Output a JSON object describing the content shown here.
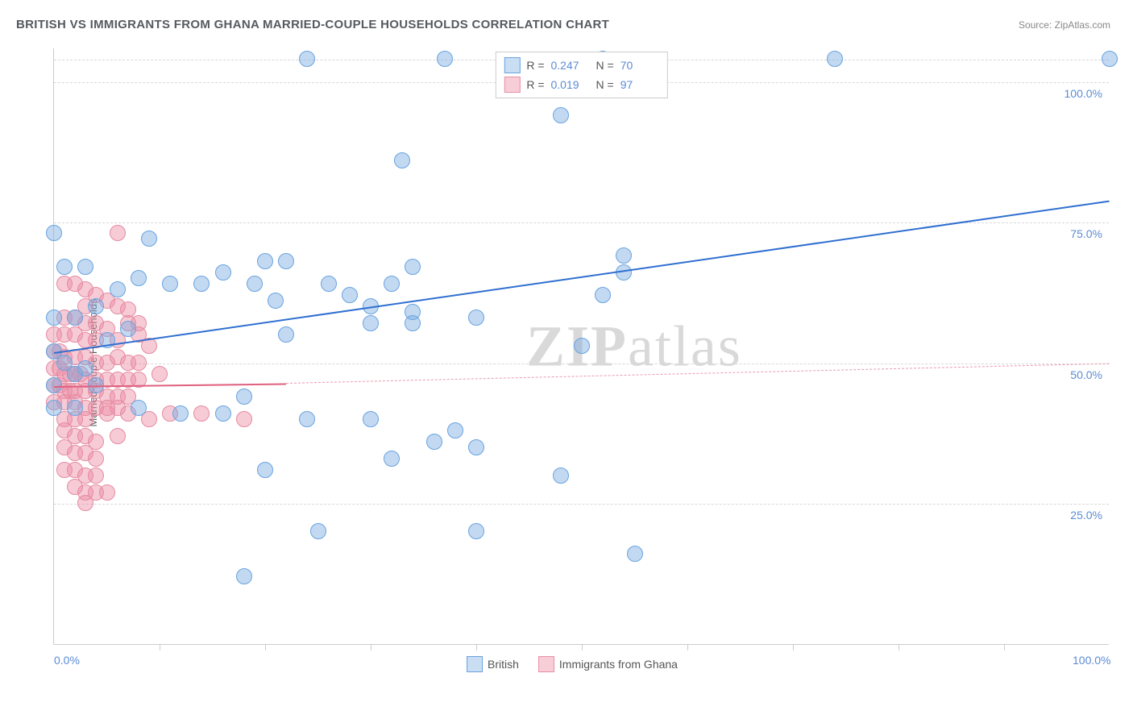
{
  "title": "BRITISH VS IMMIGRANTS FROM GHANA MARRIED-COUPLE HOUSEHOLDS CORRELATION CHART",
  "source_label": "Source: ",
  "source_name": "ZipAtlas.com",
  "ylabel": "Married-couple Households",
  "watermark_bold": "ZIP",
  "watermark_rest": "atlas",
  "chart": {
    "type": "scatter",
    "xlim": [
      0,
      100
    ],
    "ylim": [
      0,
      106
    ],
    "yticks": [
      {
        "v": 25,
        "label": "25.0%"
      },
      {
        "v": 50,
        "label": "50.0%"
      },
      {
        "v": 75,
        "label": "75.0%"
      },
      {
        "v": 100,
        "label": "100.0%"
      }
    ],
    "xticks_minor": [
      10,
      20,
      30,
      40,
      50,
      60,
      70,
      80,
      90
    ],
    "xaxis_labels": [
      {
        "v": 0,
        "label": "0.0%"
      },
      {
        "v": 100,
        "label": "100.0%"
      }
    ],
    "background_color": "#ffffff",
    "grid_color": "#d8d8d8",
    "series": [
      {
        "name": "British",
        "swatch_fill": "#c9ddf3",
        "swatch_border": "#6aa3e0",
        "point_fill": "rgba(120,170,225,0.45)",
        "point_border": "#6aa3e0",
        "point_radius": 9,
        "R": "0.247",
        "N": "70",
        "trend": {
          "x1": 0,
          "y1": 52,
          "x2": 100,
          "y2": 79,
          "color": "#2f6fd0",
          "width": 2
        },
        "data": [
          [
            24,
            104
          ],
          [
            37,
            104
          ],
          [
            52,
            104
          ],
          [
            74,
            104
          ],
          [
            100,
            104
          ],
          [
            48,
            94
          ],
          [
            33,
            86
          ],
          [
            0,
            73
          ],
          [
            9,
            72
          ],
          [
            20,
            68
          ],
          [
            22,
            68
          ],
          [
            34,
            67
          ],
          [
            54,
            69
          ],
          [
            1,
            67
          ],
          [
            3,
            67
          ],
          [
            6,
            63
          ],
          [
            8,
            65
          ],
          [
            11,
            64
          ],
          [
            14,
            64
          ],
          [
            16,
            66
          ],
          [
            19,
            64
          ],
          [
            21,
            61
          ],
          [
            26,
            64
          ],
          [
            28,
            62
          ],
          [
            30,
            60
          ],
          [
            32,
            64
          ],
          [
            34,
            59
          ],
          [
            52,
            62
          ],
          [
            54,
            66
          ],
          [
            0,
            58
          ],
          [
            2,
            58
          ],
          [
            4,
            60
          ],
          [
            5,
            54
          ],
          [
            7,
            56
          ],
          [
            22,
            55
          ],
          [
            30,
            57
          ],
          [
            34,
            57
          ],
          [
            40,
            58
          ],
          [
            0,
            52
          ],
          [
            1,
            50
          ],
          [
            2,
            48
          ],
          [
            3,
            49
          ],
          [
            4,
            46
          ],
          [
            50,
            53
          ],
          [
            0,
            46
          ],
          [
            0,
            42
          ],
          [
            2,
            42
          ],
          [
            8,
            42
          ],
          [
            12,
            41
          ],
          [
            16,
            41
          ],
          [
            18,
            44
          ],
          [
            24,
            40
          ],
          [
            30,
            40
          ],
          [
            36,
            36
          ],
          [
            38,
            38
          ],
          [
            40,
            35
          ],
          [
            20,
            31
          ],
          [
            32,
            33
          ],
          [
            48,
            30
          ],
          [
            55,
            16
          ],
          [
            40,
            20
          ],
          [
            25,
            20
          ],
          [
            18,
            12
          ]
        ]
      },
      {
        "name": "Immigrants from Ghana",
        "swatch_fill": "#f7cdd7",
        "swatch_border": "#e98fa5",
        "point_fill": "rgba(235,140,165,0.45)",
        "point_border": "#e58aa0",
        "point_radius": 9,
        "R": "0.019",
        "N": "97",
        "trend_solid": {
          "x1": 0,
          "y1": 46,
          "x2": 22,
          "y2": 46.5,
          "color": "#e0607f",
          "width": 2
        },
        "trend_dash": {
          "x1": 22,
          "y1": 46.5,
          "x2": 100,
          "y2": 50,
          "color": "#e99bad",
          "width": 1.5
        },
        "data": [
          [
            6,
            73
          ],
          [
            1,
            64
          ],
          [
            2,
            64
          ],
          [
            3,
            63
          ],
          [
            4,
            62
          ],
          [
            3,
            60
          ],
          [
            5,
            61
          ],
          [
            6,
            60
          ],
          [
            7,
            59.5
          ],
          [
            1,
            58
          ],
          [
            2,
            58
          ],
          [
            3,
            57
          ],
          [
            4,
            57
          ],
          [
            5,
            56
          ],
          [
            7,
            57
          ],
          [
            8,
            57
          ],
          [
            0,
            55
          ],
          [
            1,
            55
          ],
          [
            2,
            55
          ],
          [
            3,
            54
          ],
          [
            4,
            54
          ],
          [
            6,
            54
          ],
          [
            8,
            55
          ],
          [
            9,
            53
          ],
          [
            0,
            52
          ],
          [
            0.5,
            52
          ],
          [
            1,
            51
          ],
          [
            2,
            51
          ],
          [
            3,
            51
          ],
          [
            4,
            50
          ],
          [
            5,
            50
          ],
          [
            6,
            51
          ],
          [
            7,
            50
          ],
          [
            8,
            50
          ],
          [
            0,
            49
          ],
          [
            0.5,
            49
          ],
          [
            1,
            48
          ],
          [
            1.5,
            48
          ],
          [
            2,
            48
          ],
          [
            2.5,
            48
          ],
          [
            3,
            47
          ],
          [
            4,
            47
          ],
          [
            5,
            47
          ],
          [
            6,
            47
          ],
          [
            7,
            47
          ],
          [
            8,
            47
          ],
          [
            10,
            48
          ],
          [
            0,
            46
          ],
          [
            0.5,
            46
          ],
          [
            1,
            45
          ],
          [
            1.5,
            45
          ],
          [
            2,
            45
          ],
          [
            3,
            45
          ],
          [
            4,
            45
          ],
          [
            5,
            44
          ],
          [
            6,
            44
          ],
          [
            7,
            44
          ],
          [
            0,
            43
          ],
          [
            1,
            43
          ],
          [
            2,
            43
          ],
          [
            3,
            42
          ],
          [
            4,
            42
          ],
          [
            5,
            42
          ],
          [
            6,
            42
          ],
          [
            1,
            40
          ],
          [
            2,
            40
          ],
          [
            3,
            40
          ],
          [
            5,
            41
          ],
          [
            7,
            41
          ],
          [
            9,
            40
          ],
          [
            11,
            41
          ],
          [
            14,
            41
          ],
          [
            18,
            40
          ],
          [
            1,
            38
          ],
          [
            2,
            37
          ],
          [
            3,
            37
          ],
          [
            4,
            36
          ],
          [
            6,
            37
          ],
          [
            1,
            35
          ],
          [
            2,
            34
          ],
          [
            3,
            34
          ],
          [
            4,
            33
          ],
          [
            1,
            31
          ],
          [
            2,
            31
          ],
          [
            3,
            30
          ],
          [
            4,
            30
          ],
          [
            2,
            28
          ],
          [
            3,
            27
          ],
          [
            4,
            27
          ],
          [
            5,
            27
          ],
          [
            3,
            25
          ]
        ]
      }
    ]
  },
  "legend_top_keys": {
    "R": "R =",
    "N": "N ="
  }
}
